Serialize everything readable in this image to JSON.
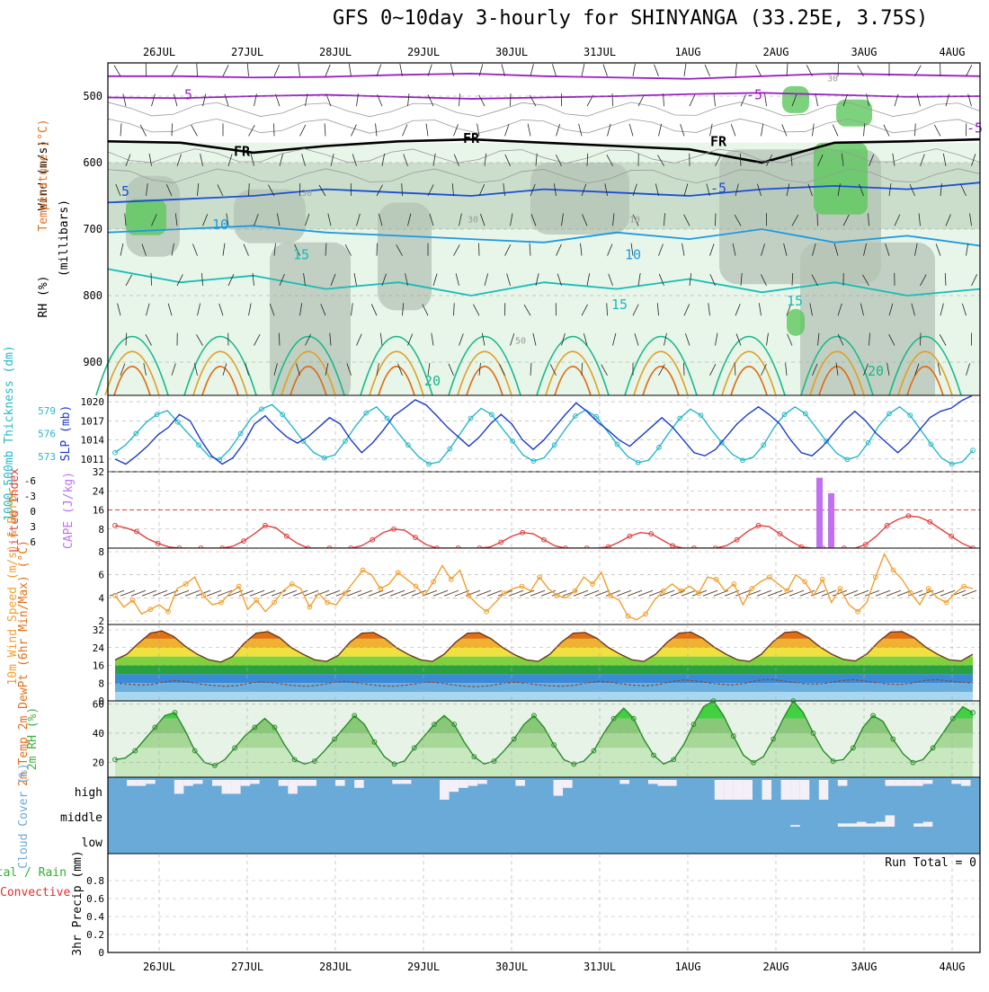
{
  "title": "GFS 0~10day 3-hourly for SHINYANGA (33.25E, 3.75S)",
  "days": [
    "26JUL",
    "27JUL",
    "28JUL",
    "29JUL",
    "30JUL",
    "31JUL",
    "1AUG",
    "2AUG",
    "3AUG",
    "4AUG"
  ],
  "colors": {
    "rh_light": "#e8f5e9",
    "rh_mid": "#c8dcc8",
    "rh_dark": "#b4c3b4",
    "rh_green": "#5cc85c",
    "temp_violet": "#9a1fc2",
    "temp_blue": "#1a4fd6",
    "temp_lightblue": "#1b9be0",
    "temp_teal": "#16bdb8",
    "temp_green": "#15b88a",
    "temp_gold": "#e0a020",
    "temp_orange": "#e06a10",
    "thickness": "#28b8c8",
    "slp": "#1c3cc8",
    "lifted": "#e04040",
    "cape": "#c070f0",
    "wind": "#f0a030",
    "cloud": "#6aaad8",
    "rh2m": "#40b040"
  },
  "chart_data": [
    {
      "type": "contour",
      "panel": "upper-air",
      "ylabel_rh": "RH (%)",
      "ylabel_temp": "Temperature (°C)",
      "ylabel_wind": "Wind (m/s)",
      "ylabel_units": "(millibars)",
      "y_ticks": [
        500,
        600,
        700,
        800,
        900
      ],
      "y_range": [
        450,
        950
      ],
      "contour_labels": [
        "5",
        "-5",
        "FR",
        "FR",
        "FR",
        "-5",
        "-5",
        "5",
        "10",
        "15",
        "10",
        "15",
        "15",
        "20",
        "20",
        "10",
        "30",
        "50",
        "30",
        "30"
      ],
      "temperature_levels": [
        {
          "label": "-5",
          "mb": [
            502,
            503,
            500,
            498,
            501,
            504,
            502,
            500,
            497,
            495,
            498,
            501,
            500
          ]
        },
        {
          "label": "-5",
          "mb": [
            470,
            470,
            472,
            471,
            468,
            466,
            470,
            472,
            474,
            470,
            466,
            468,
            470
          ]
        },
        {
          "label": "FR",
          "mb": [
            568,
            570,
            585,
            575,
            568,
            565,
            570,
            575,
            580,
            600,
            570,
            568,
            565
          ]
        },
        {
          "label": "-5",
          "mb": [
            660,
            655,
            650,
            640,
            645,
            650,
            640,
            645,
            650,
            640,
            635,
            640,
            630
          ]
        },
        {
          "label": "10",
          "mb": [
            705,
            700,
            695,
            705,
            710,
            715,
            720,
            705,
            715,
            700,
            720,
            710,
            725
          ]
        },
        {
          "label": "15",
          "mb": [
            760,
            780,
            770,
            790,
            780,
            800,
            780,
            790,
            775,
            795,
            780,
            800,
            790
          ]
        }
      ]
    },
    {
      "type": "line",
      "panel": "thickness-slp",
      "ylabel_thickness": "1000-500mb Thickness (dm)",
      "ylabel_slp": "SLP (mb)",
      "thickness_ticks": [
        573,
        576,
        579
      ],
      "slp_ticks": [
        1011,
        1014,
        1017,
        1020
      ],
      "thickness_range": [
        571,
        581
      ],
      "slp_range": [
        1009,
        1021
      ],
      "series": [
        {
          "name": "",
          "values": [
            573.5,
            574.5,
            576,
            577.5,
            578.5,
            579,
            577.5,
            576,
            574.5,
            573,
            572.6,
            574,
            576,
            578,
            579.2,
            579.8,
            578.5,
            576.8,
            575,
            573.5,
            572.8,
            573.2,
            575,
            577,
            578.7,
            579.5,
            578,
            576.2,
            574.5,
            573,
            572,
            572.3,
            574,
            576,
            578,
            579.3,
            578.5,
            576.7,
            575,
            573.2,
            572.4,
            572.8,
            574.5,
            576.5,
            578.3,
            579.1,
            578.2,
            576.4,
            574.6,
            573,
            572.2,
            572.5,
            574.2,
            576.2,
            578,
            579.2,
            578.4,
            576.5,
            574.8,
            573.3,
            572.5,
            572.9,
            574.5,
            576.8,
            578.5,
            579.5,
            578.6,
            576.8,
            575,
            573.4,
            572.6,
            573,
            574.8,
            577,
            578.6,
            579.5,
            578.4,
            576.5,
            574.6,
            572.8,
            572,
            572.3,
            573.8
          ]
        },
        {
          "name": "",
          "values": [
            1011,
            1010.2,
            1011.5,
            1013,
            1014.8,
            1016,
            1018,
            1017,
            1014,
            1011.5,
            1010.2,
            1011.2,
            1013.5,
            1016.5,
            1017.8,
            1016,
            1014.5,
            1013.5,
            1014.5,
            1016,
            1017.5,
            1016.5,
            1014,
            1012,
            1013.5,
            1015.5,
            1017.8,
            1019,
            1020.3,
            1019.5,
            1017.8,
            1016,
            1014.5,
            1013,
            1014.5,
            1016.5,
            1018,
            1016.5,
            1014,
            1012.5,
            1014,
            1016,
            1018,
            1019.8,
            1018.5,
            1016.8,
            1015.5,
            1014,
            1013,
            1014.5,
            1016,
            1017.5,
            1016,
            1014,
            1012,
            1011.5,
            1012.5,
            1014.5,
            1016.5,
            1018,
            1019.2,
            1018,
            1016.5,
            1014,
            1012,
            1011.5,
            1013,
            1015,
            1017,
            1018.5,
            1017,
            1015,
            1013.5,
            1012,
            1013.5,
            1015.5,
            1017.5,
            1018.5,
            1019,
            1020.2,
            1021
          ]
        }
      ]
    },
    {
      "type": "line-bar",
      "panel": "stability",
      "ylabel_li": "Lifted Index",
      "ylabel_cape": "CAPE (J/kg)",
      "li_ticks": [
        "-6",
        "-3",
        "0",
        "3",
        "6"
      ],
      "cape_ticks": [
        8,
        16,
        24,
        32
      ],
      "cape_range": [
        0,
        32
      ],
      "series": [
        {
          "name": "",
          "values": [
            9.5,
            8.5,
            7,
            4,
            2,
            0.5,
            0,
            0,
            0,
            0,
            0,
            0.8,
            3,
            6,
            9.5,
            8.5,
            5,
            2,
            0,
            0,
            0,
            0,
            0,
            1,
            3.5,
            6.5,
            8,
            7.5,
            4.5,
            1.5,
            0,
            0,
            0,
            0,
            0,
            0.5,
            2.5,
            5,
            6.5,
            6,
            3.5,
            1,
            0,
            0,
            0,
            0,
            0.5,
            2.5,
            5,
            6.5,
            6,
            3.5,
            1,
            0,
            0,
            0,
            0,
            1,
            3.5,
            7,
            9.5,
            9,
            6,
            3,
            0.5,
            0,
            0,
            0,
            0,
            0,
            1.5,
            5,
            9.5,
            12,
            13.5,
            13,
            11,
            8,
            5,
            2,
            0
          ]
        },
        {
          "name": "",
          "values": [
            0,
            0,
            29.5,
            0,
            23
          ]
        }
      ]
    },
    {
      "type": "line",
      "panel": "wind10m",
      "ylabel": "10m Wind Speed (m/s) & Barbs",
      "y_ticks": [
        2,
        4,
        6,
        8
      ],
      "y_range": [
        2,
        8
      ],
      "series": [
        {
          "name": "",
          "values": [
            4.2,
            3.2,
            3.8,
            2.6,
            3.0,
            3.4,
            2.8,
            4.8,
            5.2,
            5.8,
            4.2,
            3.4,
            3.6,
            4.4,
            5.0,
            3.0,
            3.8,
            2.8,
            3.6,
            4.6,
            5.2,
            4.8,
            3.2,
            4.4,
            3.6,
            3.4,
            4.4,
            5.4,
            6.4,
            6.0,
            4.8,
            5.2,
            6.2,
            5.6,
            5.0,
            4.2,
            5.4,
            6.8,
            5.6,
            6.4,
            4.2,
            3.4,
            2.8,
            3.6,
            4.4,
            4.8,
            5.0,
            4.6,
            5.8,
            4.8,
            4.2,
            4.0,
            4.6,
            5.8,
            5.2,
            6.2,
            4.2,
            3.8,
            2.4,
            2.1,
            2.6,
            3.8,
            4.6,
            5.2,
            4.6,
            5.0,
            4.4,
            5.8,
            5.6,
            4.6,
            5.2,
            3.4,
            4.8,
            5.4,
            5.8,
            5.2,
            4.6,
            6.0,
            5.4,
            4.2,
            5.6,
            3.6,
            4.8,
            3.4,
            2.8,
            3.6,
            5.8,
            7.8,
            6.4,
            5.6,
            4.4,
            3.4,
            4.8,
            4.0,
            3.6,
            4.4,
            5.0,
            4.8
          ]
        }
      ]
    },
    {
      "type": "area",
      "panel": "temp2m",
      "ylabel": "2m Temp 2m DewPt (6hr Min/Max) (°C)",
      "y_ticks": [
        0,
        8,
        16,
        24,
        32
      ],
      "y_range": [
        0,
        32
      ],
      "series": [
        {
          "name": "",
          "values": [
            18.5,
            21,
            26,
            30.5,
            31.5,
            29,
            24.5,
            21,
            18.5,
            17.5,
            20,
            26,
            30.5,
            31.2,
            28.5,
            24,
            21,
            18.5,
            17.8,
            20.5,
            26.5,
            30.5,
            30.8,
            28,
            23.8,
            20.8,
            18.5,
            17.8,
            21,
            26.5,
            30.5,
            30.7,
            28,
            24,
            20.8,
            18.5,
            17.8,
            21,
            26.5,
            30.5,
            30.8,
            28.2,
            24,
            21,
            18.5,
            17.8,
            21,
            26.5,
            30.5,
            31,
            28.3,
            24.2,
            21,
            18.5,
            17.8,
            21,
            26.7,
            30.8,
            31.2,
            28.5,
            24.3,
            21,
            18.7,
            18,
            21.2,
            26.8,
            31,
            31.2,
            28.5,
            24.2,
            21,
            18.5,
            18,
            21
          ]
        },
        {
          "name": "",
          "values": [
            8,
            7.6,
            7.2,
            7.4,
            8.4,
            9.2,
            8.6,
            7.6,
            7,
            6.6,
            6.8,
            7.8,
            8.6,
            8.2,
            7.4,
            6.8,
            6.6,
            7.2,
            8.2,
            8.8,
            8.2,
            7.4,
            6.8,
            6.6,
            7,
            7.8,
            8.4,
            8,
            7.2,
            6.6,
            6.4,
            6.8,
            7.8,
            8.4,
            8,
            7.2,
            6.8,
            6.6,
            7,
            8,
            8.8,
            8.4,
            7.6,
            7,
            6.8,
            7.4,
            8.6,
            9.4,
            9,
            8.2,
            7.6,
            7.2,
            7.8,
            9,
            9.8,
            9.2,
            8.4,
            7.8,
            7.6,
            8,
            9,
            9.6,
            9,
            8.2,
            7.6,
            7.4,
            8,
            9.2,
            9.6,
            9,
            8.4,
            8
          ]
        }
      ]
    },
    {
      "type": "area",
      "panel": "rh2m",
      "ylabel": "2m RH (%)",
      "y_ticks": [
        20,
        40,
        60
      ],
      "y_range": [
        10,
        62
      ],
      "series": [
        {
          "name": "",
          "values": [
            22,
            23,
            28,
            36,
            44,
            52,
            54,
            42,
            28,
            20,
            18,
            22,
            30,
            38,
            44,
            50,
            44,
            32,
            22,
            19,
            21,
            28,
            36,
            44,
            52,
            46,
            34,
            24,
            19,
            21,
            30,
            38,
            46,
            52,
            46,
            34,
            24,
            19,
            21,
            28,
            36,
            46,
            52,
            44,
            32,
            22,
            19,
            21,
            28,
            40,
            50,
            57,
            50,
            36,
            25,
            19,
            22,
            32,
            46,
            58,
            62,
            52,
            38,
            25,
            20,
            24,
            36,
            50,
            62,
            54,
            40,
            28,
            21,
            22,
            30,
            44,
            52,
            48,
            36,
            26,
            20,
            22,
            30,
            40,
            50,
            58,
            54
          ]
        }
      ]
    },
    {
      "type": "bar",
      "panel": "cloud",
      "ylabel": "Cloud Cover (%)",
      "y_ticks": [
        "high",
        "middle",
        "low"
      ],
      "series": [
        {
          "name": "high",
          "values": [
            0,
            0,
            30,
            30,
            20,
            0,
            0,
            70,
            30,
            20,
            0,
            30,
            70,
            70,
            30,
            20,
            0,
            0,
            30,
            70,
            30,
            30,
            0,
            0,
            30,
            0,
            40,
            0,
            0,
            0,
            20,
            20,
            0,
            0,
            0,
            100,
            60,
            40,
            30,
            20,
            0,
            0,
            0,
            30,
            0,
            0,
            0,
            80,
            40,
            0,
            0,
            0,
            0,
            0,
            20,
            0,
            0,
            20,
            30,
            30,
            0,
            0,
            0,
            0,
            100,
            100,
            100,
            100,
            0,
            100,
            0,
            100,
            100,
            100,
            0,
            100,
            0,
            30,
            0,
            0,
            0,
            0,
            30,
            30,
            30,
            30,
            20,
            0,
            0,
            20,
            30,
            0
          ]
        },
        {
          "name": "middle",
          "values": [
            0,
            0,
            0,
            0,
            0,
            0,
            0,
            0,
            0,
            0,
            0,
            0,
            0,
            0,
            0,
            0,
            0,
            0,
            0,
            0,
            0,
            0,
            0,
            0,
            0,
            0,
            0,
            0,
            0,
            0,
            0,
            0,
            0,
            0,
            0,
            0,
            0,
            0,
            0,
            0,
            0,
            0,
            0,
            0,
            0,
            0,
            0,
            0,
            0,
            0,
            0,
            0,
            0,
            0,
            0,
            0,
            0,
            0,
            0,
            0,
            0,
            0,
            0,
            0,
            0,
            0,
            0,
            0,
            0,
            0,
            0,
            0,
            10,
            0,
            0,
            0,
            0,
            20,
            20,
            30,
            20,
            30,
            70,
            0,
            0,
            20,
            30,
            0,
            0,
            0,
            0,
            0
          ]
        }
      ]
    },
    {
      "type": "line",
      "panel": "precip",
      "ylabel_total": "Total / Rain",
      "ylabel_conv": "Convective",
      "ylabel": "3hr Precip (mm)",
      "y_ticks": [
        "0",
        "0.2",
        "0.4",
        "0.6",
        "0.8"
      ],
      "y_range": [
        0,
        1
      ],
      "run_total": "Run Total = 0",
      "series": []
    }
  ]
}
